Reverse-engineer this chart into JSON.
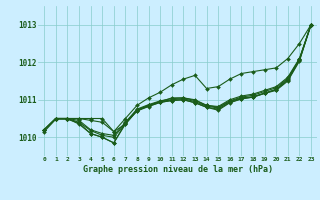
{
  "xlabel": "Graphe pression niveau de la mer (hPa)",
  "bg_color": "#cceeff",
  "grid_color": "#88cccc",
  "line_color": "#1a5c1a",
  "marker_color": "#1a5c1a",
  "ylim": [
    1009.5,
    1013.5
  ],
  "xlim": [
    -0.5,
    23.5
  ],
  "yticks": [
    1010,
    1011,
    1012,
    1013
  ],
  "xticks": [
    0,
    1,
    2,
    3,
    4,
    5,
    6,
    7,
    8,
    9,
    10,
    11,
    12,
    13,
    14,
    15,
    16,
    17,
    18,
    19,
    20,
    21,
    22,
    23
  ],
  "series": [
    [
      1010.2,
      1010.5,
      1010.5,
      1010.5,
      1010.45,
      1010.4,
      1010.15,
      1010.35,
      1010.7,
      1010.85,
      1010.95,
      1011.05,
      1011.05,
      1011.0,
      1010.85,
      1010.82,
      1011.0,
      1011.1,
      1011.15,
      1011.25,
      1011.35,
      1011.6,
      1012.1,
      1013.0
    ],
    [
      1010.2,
      1010.5,
      1010.5,
      1010.45,
      1010.2,
      1010.1,
      1010.05,
      1010.4,
      1010.75,
      1010.87,
      1010.97,
      1011.03,
      1011.05,
      1010.98,
      1010.85,
      1010.8,
      1010.97,
      1011.07,
      1011.12,
      1011.22,
      1011.32,
      1011.57,
      1012.08,
      1013.0
    ],
    [
      1010.2,
      1010.5,
      1010.5,
      1010.4,
      1010.18,
      1010.05,
      1010.0,
      1010.37,
      1010.73,
      1010.85,
      1010.95,
      1011.0,
      1011.03,
      1010.95,
      1010.83,
      1010.78,
      1010.95,
      1011.05,
      1011.08,
      1011.18,
      1011.28,
      1011.55,
      1012.07,
      1013.0
    ],
    [
      1010.15,
      1010.48,
      1010.48,
      1010.38,
      1010.1,
      1010.0,
      1009.85,
      1010.38,
      1010.7,
      1010.82,
      1010.93,
      1010.98,
      1011.0,
      1010.92,
      1010.8,
      1010.75,
      1010.93,
      1011.03,
      1011.07,
      1011.17,
      1011.27,
      1011.52,
      1012.05,
      1013.0
    ],
    [
      1010.2,
      1010.5,
      1010.5,
      1010.35,
      1010.1,
      1010.0,
      1009.85,
      1010.35,
      1010.72,
      1010.83,
      1010.93,
      1010.98,
      1011.0,
      1010.92,
      1010.8,
      1010.72,
      1010.92,
      1011.02,
      1011.07,
      1011.17,
      1011.25,
      1011.5,
      1012.03,
      1013.0
    ]
  ],
  "series_top": [
    1010.2,
    1010.5,
    1010.5,
    1010.5,
    1010.5,
    1010.5,
    1010.15,
    1010.5,
    1010.85,
    1011.05,
    1011.2,
    1011.4,
    1011.55,
    1011.65,
    1011.3,
    1011.35,
    1011.55,
    1011.7,
    1011.75,
    1011.8,
    1011.85,
    1012.1,
    1012.5,
    1013.0
  ]
}
